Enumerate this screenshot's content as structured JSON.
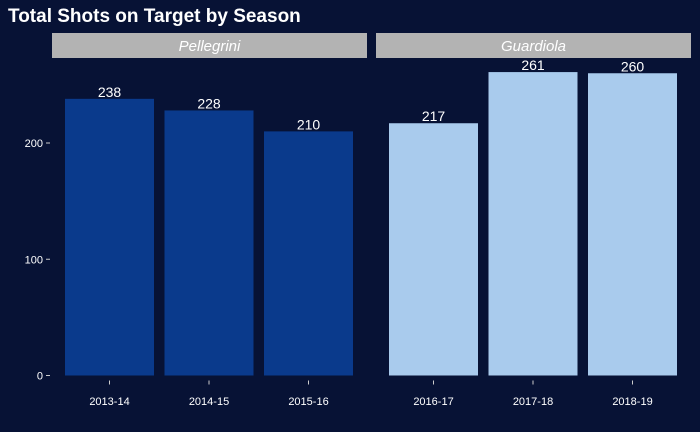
{
  "chart_data": {
    "type": "bar",
    "title": "Total Shots on Target by Season",
    "xlabel": "",
    "ylabel": "",
    "ylim": [
      0,
      280
    ],
    "yticks": [
      0,
      100,
      200
    ],
    "grid": false,
    "legend": "none",
    "facets": [
      {
        "label": "Pellegrini",
        "color": "#0a3a8c",
        "categories": [
          "2013-14",
          "2014-15",
          "2015-16"
        ],
        "values": [
          238,
          228,
          210
        ]
      },
      {
        "label": "Guardiola",
        "color": "#a9cbed",
        "categories": [
          "2016-17",
          "2017-18",
          "2018-19"
        ],
        "values": [
          217,
          261,
          260
        ]
      }
    ],
    "colors": {
      "background": "#071235",
      "strip": "#b3b3b3",
      "text": "#ffffff"
    }
  }
}
